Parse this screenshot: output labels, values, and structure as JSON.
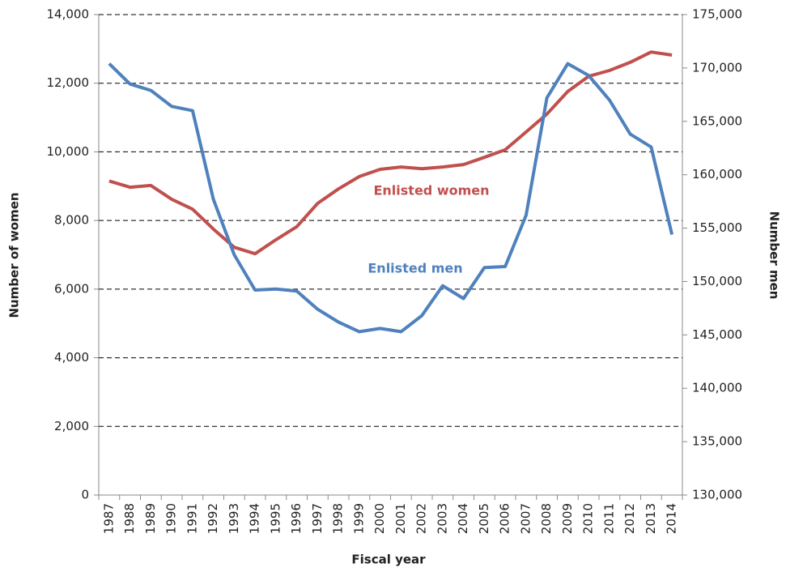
{
  "chart_data": {
    "type": "line",
    "x_label": "Fiscal year",
    "y_label": "Number of women",
    "y2_label": "Number men",
    "categories": [
      "1987",
      "1988",
      "1989",
      "1990",
      "1991",
      "1992",
      "1993",
      "1994",
      "1995",
      "1996",
      "1997",
      "1998",
      "1999",
      "2000",
      "2001",
      "2002",
      "2003",
      "2004",
      "2005",
      "2006",
      "2007",
      "2008",
      "2009",
      "2010",
      "2011",
      "2012",
      "2013",
      "2014"
    ],
    "series": [
      {
        "name": "Enlisted women",
        "color": "#c0504d",
        "axis": "y",
        "values": [
          9150,
          8970,
          9020,
          8620,
          8330,
          7750,
          7220,
          7030,
          7440,
          7820,
          8500,
          8920,
          9280,
          9490,
          9560,
          9510,
          9560,
          9630,
          9840,
          10060,
          10580,
          11100,
          11760,
          12200,
          12370,
          12610,
          12910,
          12820
        ]
      },
      {
        "name": "Enlisted men",
        "color": "#4f81bd",
        "axis": "y2",
        "values": [
          170400,
          168500,
          167900,
          166400,
          166000,
          157700,
          152500,
          149200,
          149300,
          149100,
          147400,
          146200,
          145300,
          145600,
          145300,
          146800,
          149600,
          148400,
          151300,
          151400,
          156200,
          167200,
          170400,
          169300,
          167000,
          163800,
          162600,
          154400
        ]
      }
    ],
    "ylim": [
      0,
      14000
    ],
    "yticks": [
      0,
      {
        "value": 2000,
        "label": "2,000"
      },
      {
        "value": 4000,
        "label": "4,000"
      },
      {
        "value": 6000,
        "label": "6,000"
      },
      {
        "value": 8000,
        "label": "8,000"
      },
      {
        "value": 10000,
        "label": "10,000"
      },
      {
        "value": 12000,
        "label": "12,000"
      },
      {
        "value": 14000,
        "label": "14,000"
      }
    ],
    "y2lim": [
      130000,
      175000
    ],
    "y2ticks": [
      {
        "value": 130000,
        "label": "130,000"
      },
      {
        "value": 135000,
        "label": "135,000"
      },
      {
        "value": 140000,
        "label": "140,000"
      },
      {
        "value": 145000,
        "label": "145,000"
      },
      {
        "value": 150000,
        "label": "150,000"
      },
      {
        "value": 155000,
        "label": "155,000"
      },
      {
        "value": 160000,
        "label": "160,000"
      },
      {
        "value": 165000,
        "label": "165,000"
      },
      {
        "value": 170000,
        "label": "170,000"
      },
      {
        "value": 175000,
        "label": "175,000"
      }
    ],
    "grid": true
  }
}
